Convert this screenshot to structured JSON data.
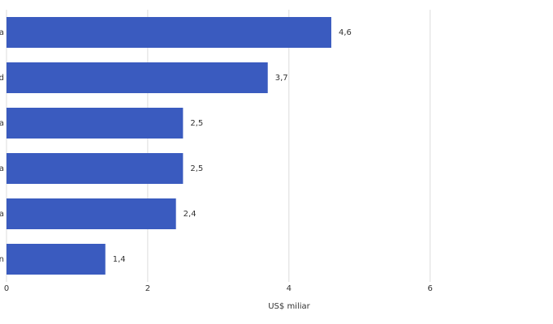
{
  "chart_data": {
    "type": "hbar",
    "categories": [
      "a",
      "d",
      "a",
      "a",
      "a",
      "n"
    ],
    "values": [
      4.6,
      3.7,
      2.5,
      2.5,
      2.4,
      1.4
    ],
    "value_labels": [
      "4,6",
      "3,7",
      "2,5",
      "2,5",
      "2,4",
      "1,4"
    ],
    "color": "#3a5bbf",
    "xlabel": "US$ miliar",
    "xlim": [
      0,
      7.74
    ],
    "xticks": [
      0,
      2,
      4,
      6
    ],
    "grid": true
  }
}
